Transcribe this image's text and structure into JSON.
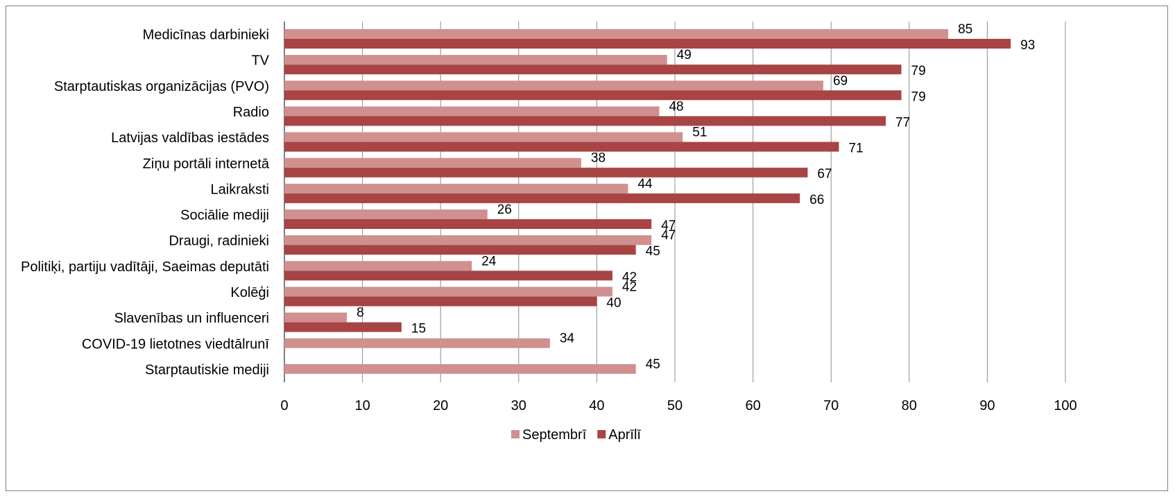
{
  "chart_data": {
    "type": "bar",
    "orientation": "horizontal",
    "categories": [
      "Medicīnas darbinieki",
      "TV",
      "Starptautiskas organizācijas (PVO)",
      "Radio",
      "Latvijas valdības iestādes",
      "Ziņu portāli internetā",
      "Laikraksti",
      "Sociālie mediji",
      "Draugi, radinieki",
      "Politiķi, partiju vadītāji, Saeimas deputāti",
      "Kolēģi",
      "Slavenības un influenceri",
      "COVID-19 lietotnes viedtālrunī",
      "Starptautiskie mediji"
    ],
    "series": [
      {
        "name": "Septembrī",
        "color": "#d09090",
        "values": [
          85,
          49,
          69,
          48,
          51,
          38,
          44,
          26,
          47,
          24,
          42,
          8,
          34,
          45
        ]
      },
      {
        "name": "Aprīlī",
        "color": "#a84444",
        "values": [
          93,
          79,
          79,
          77,
          71,
          67,
          66,
          47,
          45,
          42,
          40,
          15,
          null,
          null
        ]
      }
    ],
    "xlim": [
      0,
      100
    ],
    "xticks": [
      0,
      10,
      20,
      30,
      40,
      50,
      60,
      70,
      80,
      90,
      100
    ],
    "grid": true,
    "legend_position": "bottom",
    "title": "",
    "xlabel": "",
    "ylabel": ""
  }
}
